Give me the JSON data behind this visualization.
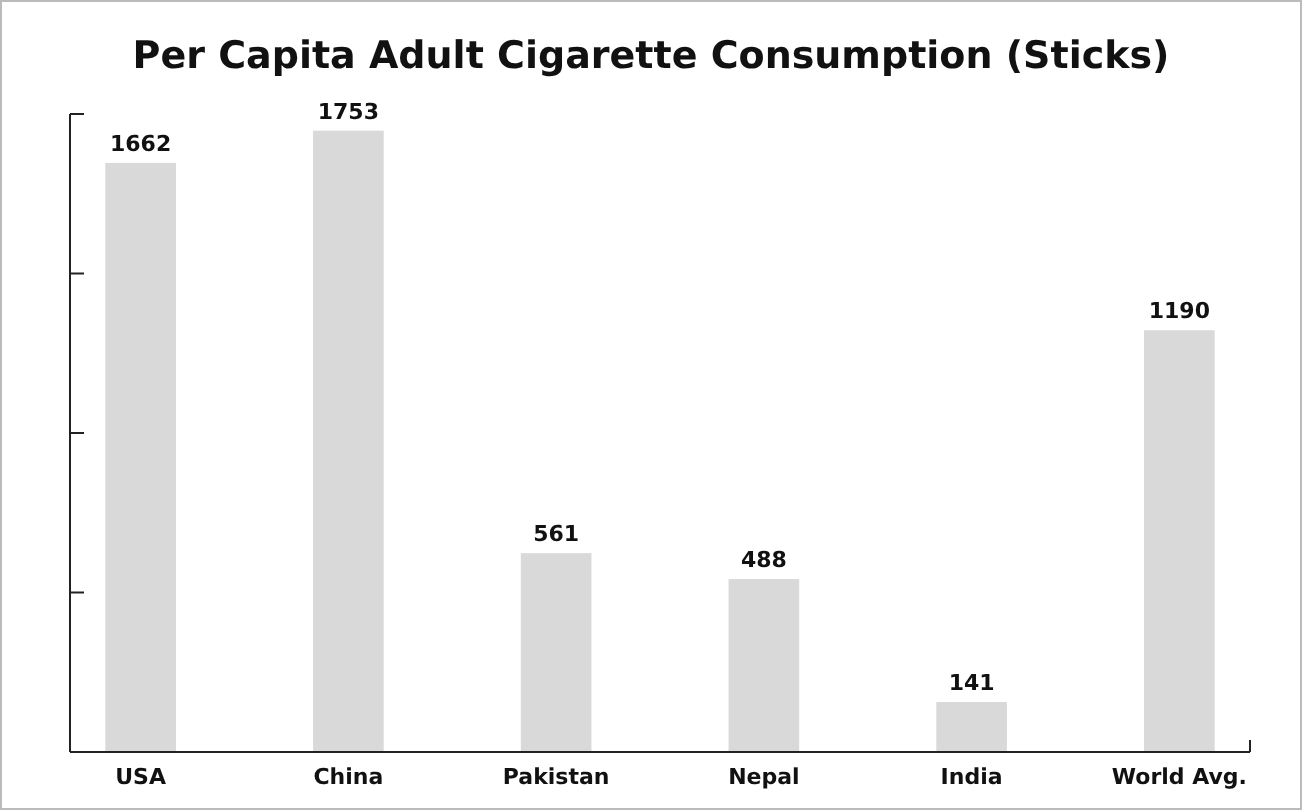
{
  "chart_data": {
    "type": "bar",
    "title": "Per Capita Adult Cigarette Consumption (Sticks)",
    "categories": [
      "USA",
      "China",
      "Pakistan",
      "Nepal",
      "India",
      "World Avg."
    ],
    "values": [
      1662,
      1753,
      561,
      488,
      141,
      1190
    ],
    "color": "#d9d9d9",
    "data_labels": true,
    "ylim": [
      0,
      1800
    ],
    "yticks": [
      {
        "value": 450,
        "label": null
      },
      {
        "value": 900,
        "label": null
      },
      {
        "value": 1350,
        "label": null
      },
      {
        "value": 1800,
        "label": null
      }
    ],
    "tick_labels": "x",
    "grid": false
  }
}
